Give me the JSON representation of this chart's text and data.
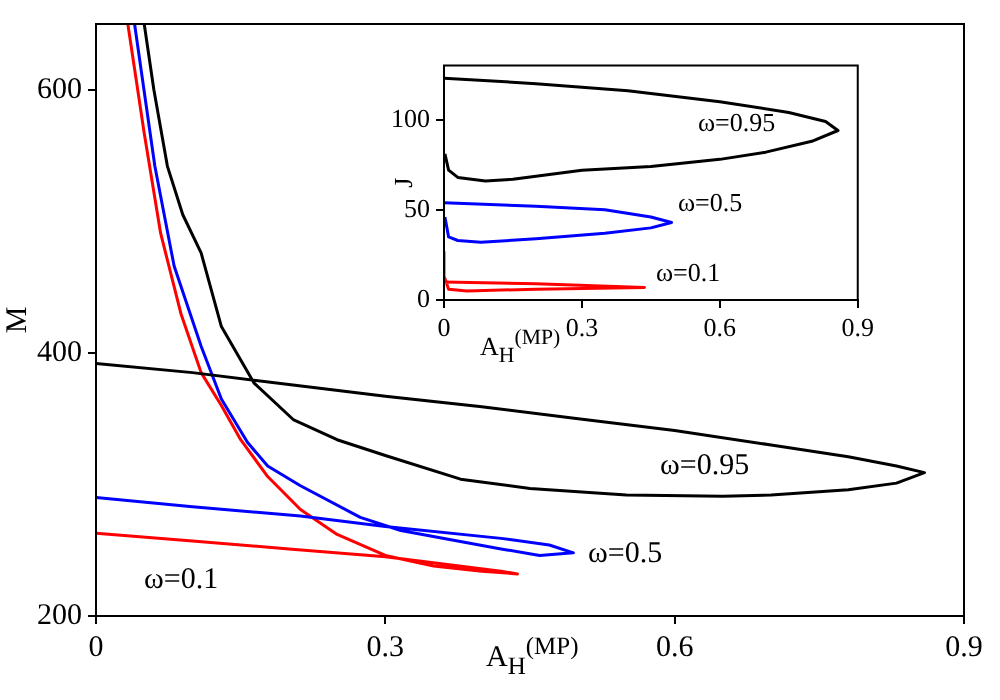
{
  "chart_data": [
    {
      "type": "line",
      "xlabel": "A$_{H}$$^{(MP)}$",
      "ylabel": "M",
      "xlim": [
        0,
        0.9
      ],
      "ylim": [
        200,
        650
      ],
      "xticks": [
        0,
        0.3,
        0.6,
        0.9
      ],
      "yticks": [
        200,
        400,
        600
      ],
      "grid": false,
      "legend": false,
      "series": [
        {
          "name": "ω=0.95",
          "color": "#000000",
          "x": [
            0,
            0.1,
            0.2,
            0.3,
            0.4,
            0.5,
            0.6,
            0.7,
            0.78,
            0.83,
            0.859,
            0.83,
            0.78,
            0.7,
            0.65,
            0.55,
            0.45,
            0.378,
            0.3,
            0.25,
            0.205,
            0.164,
            0.13,
            0.109,
            0.09,
            0.074,
            0.06,
            0.05
          ],
          "values": [
            392,
            385,
            376,
            367,
            359,
            350,
            341,
            330,
            321,
            314,
            309,
            301,
            296,
            292,
            291,
            292,
            297,
            304,
            322,
            334,
            349,
            377,
            420,
            476,
            505,
            542,
            600,
            650
          ]
        },
        {
          "name": "ω=0.5",
          "color": "#0000ff",
          "x": [
            0,
            0.1,
            0.212,
            0.3,
            0.42,
            0.47,
            0.495,
            0.46,
            0.42,
            0.316,
            0.274,
            0.212,
            0.178,
            0.157,
            0.13,
            0.109,
            0.081,
            0.061,
            0.04
          ],
          "values": [
            290,
            283,
            276,
            268,
            259,
            254,
            248,
            246,
            251,
            265,
            275,
            299,
            314,
            332,
            365,
            405,
            466,
            542,
            650
          ]
        },
        {
          "name": "ω=0.1",
          "color": "#ff0000",
          "x": [
            0,
            0.1,
            0.2,
            0.3,
            0.42,
            0.437,
            0.4,
            0.35,
            0.3,
            0.25,
            0.212,
            0.178,
            0.15,
            0.13,
            0.109,
            0.088,
            0.067,
            0.05,
            0.033
          ],
          "values": [
            263,
            257,
            251,
            245,
            234,
            232,
            234,
            238,
            246,
            262,
            281,
            306,
            334,
            360,
            385,
            430,
            491,
            567,
            650
          ]
        }
      ]
    },
    {
      "type": "line",
      "xlabel": "A$_{H}$$^{(MP)}$",
      "ylabel": "J",
      "xlim": [
        0,
        0.9
      ],
      "ylim": [
        0,
        130
      ],
      "xticks": [
        0,
        0.3,
        0.6,
        0.9
      ],
      "yticks": [
        0,
        50,
        100
      ],
      "grid": false,
      "legend": false,
      "series": [
        {
          "name": "ω=0.95",
          "color": "#000000",
          "x": [
            0,
            0.2,
            0.4,
            0.6,
            0.75,
            0.83,
            0.857,
            0.8,
            0.7,
            0.6,
            0.45,
            0.3,
            0.15,
            0.09,
            0.03,
            0.01,
            0.002
          ],
          "values": [
            123,
            120,
            116,
            110,
            104,
            99,
            94,
            88,
            82,
            78,
            74,
            72,
            67,
            66,
            68,
            72,
            81
          ]
        },
        {
          "name": "ω=0.5",
          "color": "#0000ff",
          "x": [
            0,
            0.2,
            0.35,
            0.45,
            0.495,
            0.45,
            0.35,
            0.2,
            0.08,
            0.03,
            0.01,
            0.002
          ],
          "values": [
            54,
            52,
            50,
            46,
            43,
            40,
            37,
            34,
            32,
            33,
            35,
            46
          ]
        },
        {
          "name": "ω=0.1",
          "color": "#ff0000",
          "x": [
            0,
            0.2,
            0.436,
            0.2,
            0.05,
            0.01,
            0.002,
            0
          ],
          "values": [
            10,
            9,
            7,
            6,
            5,
            6,
            12,
            27
          ]
        }
      ]
    }
  ]
}
